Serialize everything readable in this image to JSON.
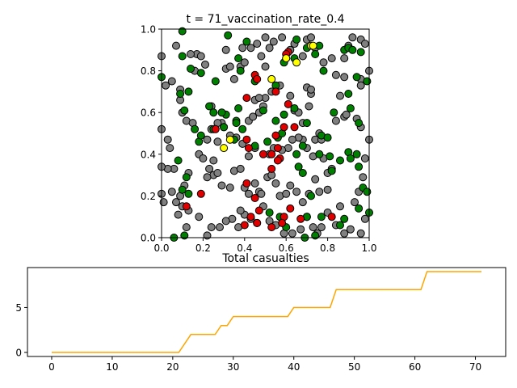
{
  "chart_data": [
    {
      "type": "scatter",
      "title": "t = 71_vaccination_rate_0.4",
      "xlim": [
        0,
        1
      ],
      "ylim": [
        0,
        1
      ],
      "xticks": [
        "0.0",
        "0.2",
        "0.4",
        "0.6",
        "0.8",
        "1.0"
      ],
      "yticks": [
        "0.0",
        "0.2",
        "0.4",
        "0.6",
        "0.8",
        "1.0"
      ],
      "grid": false,
      "status_colors": {
        "gray": "#808080",
        "green": "#008000",
        "red": "#e00000",
        "yellow": "#ffff00"
      },
      "points": {
        "gray": [
          [
            0.0,
            0.87
          ],
          [
            0.02,
            0.73
          ],
          [
            0.05,
            0.75
          ],
          [
            0.07,
            0.92
          ],
          [
            0.09,
            0.66
          ],
          [
            0.09,
            0.71
          ],
          [
            0.1,
            0.6
          ],
          [
            0.12,
            0.56
          ],
          [
            0.15,
            0.55
          ],
          [
            0.16,
            0.8
          ],
          [
            0.17,
            0.88
          ],
          [
            0.19,
            0.87
          ],
          [
            0.14,
            0.88
          ],
          [
            0.21,
            0.83
          ],
          [
            0.24,
            0.52
          ],
          [
            0.22,
            0.47
          ],
          [
            0.18,
            0.4
          ],
          [
            0.2,
            0.38
          ],
          [
            0.23,
            0.33
          ],
          [
            0.25,
            0.3
          ],
          [
            0.22,
            0.29
          ],
          [
            0.27,
            0.31
          ],
          [
            0.25,
            0.37
          ],
          [
            0.24,
            0.63
          ],
          [
            0.29,
            0.55
          ],
          [
            0.3,
            0.53
          ],
          [
            0.31,
            0.81
          ],
          [
            0.33,
            0.82
          ],
          [
            0.31,
            0.9
          ],
          [
            0.35,
            0.76
          ],
          [
            0.38,
            0.82
          ],
          [
            0.39,
            0.91
          ],
          [
            0.4,
            0.84
          ],
          [
            0.43,
            0.91
          ],
          [
            0.46,
            0.93
          ],
          [
            0.48,
            0.87
          ],
          [
            0.5,
            0.82
          ],
          [
            0.52,
            0.91
          ],
          [
            0.5,
            0.96
          ],
          [
            0.54,
            0.94
          ],
          [
            0.58,
            0.96
          ],
          [
            0.6,
            0.86
          ],
          [
            0.62,
            0.9
          ],
          [
            0.64,
            0.93
          ],
          [
            0.68,
            0.87
          ],
          [
            0.7,
            0.95
          ],
          [
            0.72,
            0.96
          ],
          [
            0.74,
            0.91
          ],
          [
            0.78,
            0.84
          ],
          [
            0.82,
            0.86
          ],
          [
            0.84,
            0.78
          ],
          [
            0.88,
            0.86
          ],
          [
            0.9,
            0.92
          ],
          [
            0.92,
            0.96
          ],
          [
            0.96,
            0.95
          ],
          [
            0.98,
            0.93
          ],
          [
            1.0,
            0.8
          ],
          [
            0.96,
            0.76
          ],
          [
            0.96,
            0.73
          ],
          [
            0.88,
            0.77
          ],
          [
            0.86,
            0.68
          ],
          [
            0.84,
            0.56
          ],
          [
            0.88,
            0.58
          ],
          [
            0.89,
            0.59
          ],
          [
            0.96,
            0.53
          ],
          [
            0.94,
            0.57
          ],
          [
            1.0,
            0.47
          ],
          [
            0.98,
            0.38
          ],
          [
            0.97,
            0.29
          ],
          [
            0.95,
            0.22
          ],
          [
            0.93,
            0.17
          ],
          [
            0.98,
            0.09
          ],
          [
            0.96,
            0.02
          ],
          [
            0.91,
            0.04
          ],
          [
            0.88,
            0.02
          ],
          [
            0.84,
            0.06
          ],
          [
            0.86,
            0.15
          ],
          [
            0.8,
            0.12
          ],
          [
            0.77,
            0.05
          ],
          [
            0.75,
            0.02
          ],
          [
            0.73,
            0.05
          ],
          [
            0.7,
            0.1
          ],
          [
            0.67,
            0.04
          ],
          [
            0.63,
            0.02
          ],
          [
            0.59,
            0.02
          ],
          [
            0.55,
            0.06
          ],
          [
            0.52,
            0.08
          ],
          [
            0.49,
            0.15
          ],
          [
            0.46,
            0.07
          ],
          [
            0.43,
            0.09
          ],
          [
            0.4,
            0.11
          ],
          [
            0.38,
            0.13
          ],
          [
            0.37,
            0.05
          ],
          [
            0.34,
            0.09
          ],
          [
            0.31,
            0.08
          ],
          [
            0.28,
            0.05
          ],
          [
            0.24,
            0.05
          ],
          [
            0.22,
            0.01
          ],
          [
            0.18,
            0.1
          ],
          [
            0.13,
            0.13
          ],
          [
            0.12,
            0.05
          ],
          [
            0.1,
            0.15
          ],
          [
            0.09,
            0.2
          ],
          [
            0.08,
            0.11
          ],
          [
            0.07,
            0.17
          ],
          [
            0.05,
            0.22
          ],
          [
            0.06,
            0.33
          ],
          [
            0.03,
            0.33
          ],
          [
            0.01,
            0.17
          ],
          [
            0.0,
            0.21
          ],
          [
            0.0,
            0.34
          ],
          [
            0.04,
            0.43
          ],
          [
            0.03,
            0.47
          ],
          [
            0.0,
            0.52
          ],
          [
            0.13,
            0.31
          ],
          [
            0.11,
            0.25
          ],
          [
            0.29,
            0.25
          ],
          [
            0.33,
            0.24
          ],
          [
            0.35,
            0.32
          ],
          [
            0.38,
            0.33
          ],
          [
            0.4,
            0.24
          ],
          [
            0.42,
            0.21
          ],
          [
            0.45,
            0.26
          ],
          [
            0.47,
            0.22
          ],
          [
            0.48,
            0.21
          ],
          [
            0.51,
            0.29
          ],
          [
            0.53,
            0.3
          ],
          [
            0.55,
            0.26
          ],
          [
            0.57,
            0.2
          ],
          [
            0.6,
            0.21
          ],
          [
            0.62,
            0.25
          ],
          [
            0.65,
            0.22
          ],
          [
            0.68,
            0.17
          ],
          [
            0.71,
            0.21
          ],
          [
            0.74,
            0.28
          ],
          [
            0.76,
            0.22
          ],
          [
            0.8,
            0.23
          ],
          [
            0.8,
            0.31
          ],
          [
            0.82,
            0.33
          ],
          [
            0.78,
            0.38
          ],
          [
            0.73,
            0.39
          ],
          [
            0.7,
            0.43
          ],
          [
            0.68,
            0.47
          ],
          [
            0.66,
            0.48
          ],
          [
            0.63,
            0.47
          ],
          [
            0.61,
            0.43
          ],
          [
            0.58,
            0.42
          ],
          [
            0.54,
            0.43
          ],
          [
            0.52,
            0.4
          ],
          [
            0.45,
            0.43
          ],
          [
            0.42,
            0.39
          ],
          [
            0.39,
            0.45
          ],
          [
            0.36,
            0.48
          ],
          [
            0.33,
            0.49
          ],
          [
            0.27,
            0.46
          ],
          [
            0.42,
            0.56
          ],
          [
            0.44,
            0.58
          ],
          [
            0.47,
            0.6
          ],
          [
            0.49,
            0.63
          ],
          [
            0.5,
            0.67
          ],
          [
            0.53,
            0.7
          ],
          [
            0.57,
            0.73
          ],
          [
            0.62,
            0.68
          ],
          [
            0.64,
            0.61
          ],
          [
            0.66,
            0.6
          ],
          [
            0.68,
            0.55
          ],
          [
            0.71,
            0.63
          ],
          [
            0.72,
            0.69
          ],
          [
            0.7,
            0.72
          ],
          [
            0.72,
            0.71
          ],
          [
            0.74,
            0.47
          ],
          [
            0.76,
            0.5
          ],
          [
            0.77,
            0.47
          ],
          [
            0.45,
            0.66
          ],
          [
            0.47,
            0.67
          ],
          [
            0.27,
            0.55
          ]
        ],
        "green": [
          [
            0.0,
            0.77
          ],
          [
            0.1,
            0.99
          ],
          [
            0.1,
            0.87
          ],
          [
            0.14,
            0.81
          ],
          [
            0.19,
            0.79
          ],
          [
            0.26,
            0.75
          ],
          [
            0.32,
            0.97
          ],
          [
            0.37,
            0.86
          ],
          [
            0.38,
            0.8
          ],
          [
            0.41,
            0.94
          ],
          [
            0.55,
            0.73
          ],
          [
            0.59,
            0.84
          ],
          [
            0.64,
            0.86
          ],
          [
            0.65,
            0.95
          ],
          [
            0.7,
            0.91
          ],
          [
            0.74,
            0.88
          ],
          [
            0.76,
            0.92
          ],
          [
            0.78,
            0.8
          ],
          [
            0.88,
            0.9
          ],
          [
            0.9,
            0.91
          ],
          [
            0.92,
            0.9
          ],
          [
            0.96,
            0.89
          ],
          [
            0.94,
            0.77
          ],
          [
            0.9,
            0.69
          ],
          [
            0.99,
            0.75
          ],
          [
            0.83,
            0.6
          ],
          [
            0.91,
            0.62
          ],
          [
            0.95,
            0.55
          ],
          [
            0.09,
            0.69
          ],
          [
            0.11,
            0.61
          ],
          [
            0.13,
            0.7
          ],
          [
            0.23,
            0.63
          ],
          [
            0.25,
            0.6
          ],
          [
            0.31,
            0.59
          ],
          [
            0.37,
            0.62
          ],
          [
            0.39,
            0.52
          ],
          [
            0.35,
            0.47
          ],
          [
            0.3,
            0.53
          ],
          [
            0.25,
            0.52
          ],
          [
            0.18,
            0.46
          ],
          [
            0.45,
            0.44
          ],
          [
            0.51,
            0.46
          ],
          [
            0.56,
            0.48
          ],
          [
            0.65,
            0.4
          ],
          [
            0.68,
            0.44
          ],
          [
            0.7,
            0.55
          ],
          [
            0.77,
            0.49
          ],
          [
            0.76,
            0.4
          ],
          [
            0.8,
            0.48
          ],
          [
            0.81,
            0.39
          ],
          [
            0.82,
            0.32
          ],
          [
            0.86,
            0.37
          ],
          [
            0.9,
            0.41
          ],
          [
            0.91,
            0.38
          ],
          [
            0.94,
            0.4
          ],
          [
            0.95,
            0.34
          ],
          [
            0.97,
            0.24
          ],
          [
            0.99,
            0.22
          ],
          [
            0.95,
            0.14
          ],
          [
            1.0,
            0.12
          ],
          [
            0.88,
            0.09
          ],
          [
            0.86,
            0.06
          ],
          [
            0.77,
            0.1
          ],
          [
            0.74,
            0.01
          ],
          [
            0.72,
            0.2
          ],
          [
            0.68,
            0.31
          ],
          [
            0.66,
            0.34
          ],
          [
            0.64,
            0.62
          ],
          [
            0.59,
            0.59
          ],
          [
            0.58,
            0.5
          ],
          [
            0.55,
            0.56
          ],
          [
            0.49,
            0.61
          ],
          [
            0.45,
            0.75
          ],
          [
            0.36,
            0.56
          ],
          [
            0.13,
            0.21
          ],
          [
            0.12,
            0.29
          ],
          [
            0.1,
            0.23
          ],
          [
            0.08,
            0.37
          ],
          [
            0.11,
            0.01
          ],
          [
            0.06,
            0.0
          ],
          [
            0.16,
            0.52
          ],
          [
            0.19,
            0.49
          ],
          [
            0.29,
            0.6
          ],
          [
            0.36,
            0.55
          ],
          [
            0.52,
            0.12
          ],
          [
            0.57,
            0.1
          ],
          [
            0.6,
            0.05
          ],
          [
            0.69,
            0.0
          ],
          [
            0.7,
            0.1
          ]
        ],
        "red": [
          [
            0.41,
            0.67
          ],
          [
            0.45,
            0.78
          ],
          [
            0.46,
            0.76
          ],
          [
            0.55,
            0.7
          ],
          [
            0.61,
            0.89
          ],
          [
            0.61,
            0.64
          ],
          [
            0.64,
            0.53
          ],
          [
            0.59,
            0.53
          ],
          [
            0.55,
            0.49
          ],
          [
            0.57,
            0.38
          ],
          [
            0.53,
            0.33
          ],
          [
            0.56,
            0.43
          ],
          [
            0.53,
            0.4
          ],
          [
            0.49,
            0.4
          ],
          [
            0.41,
            0.47
          ],
          [
            0.42,
            0.43
          ],
          [
            0.26,
            0.52
          ],
          [
            0.41,
            0.26
          ],
          [
            0.45,
            0.19
          ],
          [
            0.47,
            0.13
          ],
          [
            0.43,
            0.1
          ],
          [
            0.4,
            0.06
          ],
          [
            0.46,
            0.07
          ],
          [
            0.53,
            0.05
          ],
          [
            0.59,
            0.1
          ],
          [
            0.58,
            0.07
          ],
          [
            0.62,
            0.14
          ],
          [
            0.67,
            0.09
          ],
          [
            0.82,
            0.1
          ],
          [
            0.19,
            0.21
          ],
          [
            0.12,
            0.15
          ],
          [
            0.6,
            0.88
          ],
          [
            0.56,
            0.37
          ]
        ],
        "yellow": [
          [
            0.3,
            0.43
          ],
          [
            0.33,
            0.47
          ],
          [
            0.53,
            0.76
          ],
          [
            0.6,
            0.86
          ],
          [
            0.65,
            0.84
          ],
          [
            0.72,
            0.92
          ],
          [
            0.73,
            0.92
          ]
        ]
      }
    },
    {
      "type": "line",
      "title": "Total casualties",
      "color": "#ffa500",
      "xlim": [
        -4,
        75
      ],
      "ylim": [
        -0.45,
        9.45
      ],
      "xticks": [
        "0",
        "10",
        "20",
        "30",
        "40",
        "50",
        "60",
        "70"
      ],
      "yticks": [
        "0",
        "5"
      ],
      "x": [
        0,
        21,
        23,
        27,
        28,
        29,
        30,
        39,
        40,
        46,
        47,
        61,
        62,
        71
      ],
      "y": [
        0,
        0,
        2,
        2,
        3,
        3,
        4,
        4,
        5,
        5,
        7,
        7,
        9,
        9
      ]
    }
  ]
}
